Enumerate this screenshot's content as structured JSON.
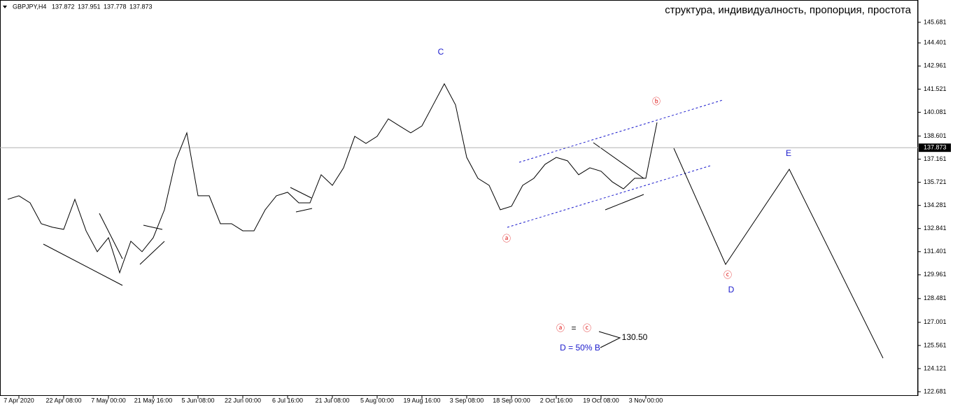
{
  "chart_data": {
    "type": "line",
    "header": {
      "symbol": "GBPJPY,H4",
      "ohlc": [
        137.872,
        137.951,
        137.778,
        137.873
      ]
    },
    "title": "структура, индивидуалность, пропорция, простота",
    "categories": [
      null,
      "7 Apr 2020",
      null,
      null,
      null,
      "22 Apr 08:00",
      null,
      null,
      null,
      "7 May 00:00",
      null,
      null,
      null,
      "21 May 16:00",
      null,
      null,
      null,
      "5 Jun 08:00",
      null,
      null,
      null,
      "22 Jun 00:00",
      null,
      null,
      null,
      "6 Jul 16:00",
      null,
      null,
      null,
      "21 Jul 08:00",
      null,
      null,
      null,
      "5 Aug 00:00",
      null,
      null,
      null,
      "19 Aug 16:00",
      null,
      null,
      null,
      "3 Sep 08:00",
      null,
      null,
      null,
      "18 Sep 00:00",
      null,
      null,
      null,
      "2 Oct 16:00",
      null,
      null,
      null,
      "19 Oct 08:00",
      null,
      null,
      null,
      "3 Nov 00:00",
      null
    ],
    "series": [
      {
        "name": "GBPJPY",
        "color": "#000000",
        "values": [
          134.66,
          134.88,
          134.44,
          133.14,
          132.92,
          132.79,
          134.66,
          132.7,
          131.4,
          132.27,
          130.09,
          132.05,
          131.4,
          132.27,
          134.01,
          137.06,
          138.8,
          134.88,
          134.88,
          133.14,
          133.14,
          132.7,
          132.7,
          134.01,
          134.88,
          135.1,
          134.44,
          134.44,
          136.19,
          135.53,
          136.62,
          138.58,
          138.14,
          138.58,
          139.67,
          139.23,
          138.8,
          139.23,
          140.54,
          141.85,
          140.54,
          137.27,
          135.97,
          135.53,
          134.01,
          134.23,
          135.53,
          135.97,
          136.84,
          137.27,
          137.06,
          136.19,
          136.62,
          136.41,
          135.75,
          135.31,
          135.97,
          135.97,
          139.45
        ]
      }
    ],
    "last_price": 137.873,
    "ylim": [
      122.42,
      147.07
    ],
    "yticks": [
      145.681,
      144.401,
      142.961,
      141.521,
      140.081,
      138.601,
      137.161,
      135.721,
      134.281,
      132.841,
      131.401,
      129.961,
      128.481,
      127.001,
      125.561,
      124.121,
      122.681
    ],
    "annotations": [
      {
        "text": "C",
        "color": "#1a1acc"
      },
      {
        "text": "ⓑ",
        "color": "#e02020"
      },
      {
        "text": "ⓐ",
        "color": "#e02020"
      },
      {
        "text": "ⓒ",
        "color": "#e02020"
      },
      {
        "text": "D",
        "color": "#1a1acc"
      },
      {
        "text": "E",
        "color": "#1a1acc"
      },
      {
        "text": "ⓐ",
        "color": "#e02020"
      },
      {
        "text": "=",
        "color": "#000000"
      },
      {
        "text": "ⓒ",
        "color": "#e02020"
      },
      {
        "text": "130.50",
        "color": "#000000"
      },
      {
        "text": "D = 50% B",
        "color": "#1a1acc"
      }
    ]
  }
}
